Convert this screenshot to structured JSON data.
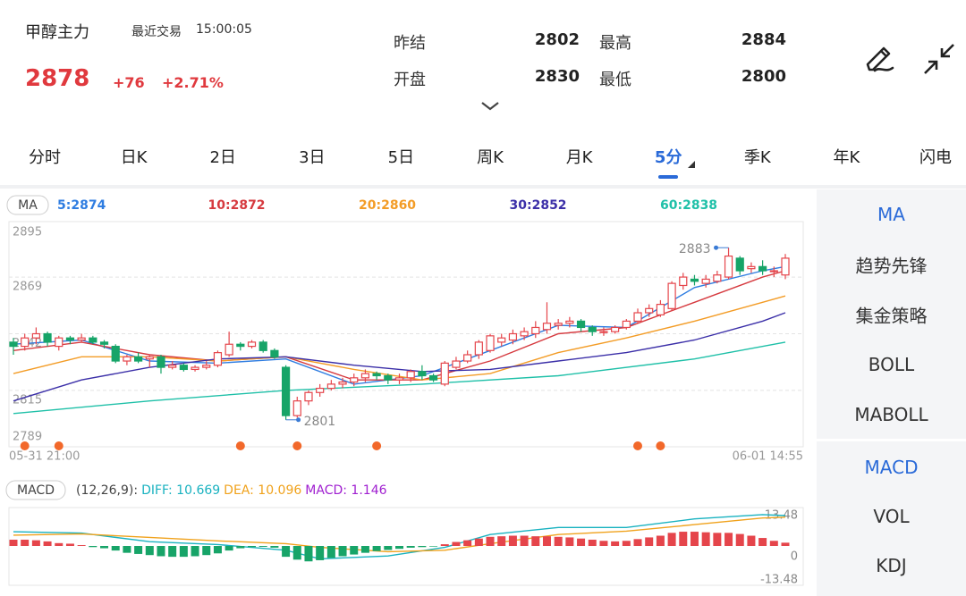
{
  "header": {
    "title": "甲醇主力",
    "last_trade_label": "最近交易",
    "time": "15:00:05",
    "price": "2878",
    "change": "+76",
    "change_pct": "+2.71%",
    "stats": [
      {
        "label": "昨结",
        "value": "2802"
      },
      {
        "label": "最高",
        "value": "2884"
      },
      {
        "label": "开盘",
        "value": "2830"
      },
      {
        "label": "最低",
        "value": "2800"
      }
    ]
  },
  "tabs": {
    "items": [
      "分时",
      "日K",
      "2日",
      "3日",
      "5日",
      "周K",
      "月K",
      "5分",
      "季K",
      "年K",
      "闪电"
    ],
    "active": 7
  },
  "side_panel": {
    "main": [
      "MA",
      "趋势先锋",
      "集金策略",
      "BOLL",
      "MABOLL"
    ],
    "main_active": 0,
    "sub": [
      "MACD",
      "VOL",
      "KDJ"
    ],
    "sub_active": 0
  },
  "chart_data": [
    {
      "type": "candlestick",
      "indicator": "MA",
      "categories": [
        "05-31 21:00",
        null,
        null,
        null,
        null,
        null,
        null,
        null,
        null,
        null,
        null,
        null,
        null,
        null,
        null,
        null,
        null,
        null,
        null,
        null,
        null,
        null,
        null,
        null,
        null,
        null,
        null,
        null,
        null,
        null,
        null,
        null,
        null,
        null,
        null,
        null,
        null,
        null,
        null,
        null,
        null,
        null,
        null,
        null,
        null,
        null,
        null,
        null,
        null,
        null,
        null,
        null,
        null,
        null,
        null,
        null,
        null,
        null,
        null,
        null,
        null,
        null,
        null,
        null,
        null,
        null,
        null,
        null,
        "06-01 14:55"
      ],
      "open": [
        2838,
        2836,
        2840,
        2842,
        2836,
        2840,
        2839,
        2840,
        2838,
        2836,
        2829,
        2831,
        2830,
        2831,
        2826,
        2827,
        2825,
        2826,
        2827,
        2832,
        2837,
        2836,
        2838,
        2834,
        2826,
        2803,
        2810,
        2814,
        2816,
        2818,
        2819,
        2821,
        2823,
        2822,
        2820,
        2821,
        2824,
        2822,
        2818,
        2826,
        2829,
        2832,
        2834,
        2838,
        2839,
        2841,
        2842,
        2844,
        2846,
        2847,
        2848,
        2845,
        2843,
        2843,
        2845,
        2848,
        2852,
        2851,
        2854,
        2865,
        2868,
        2866,
        2867,
        2869,
        2878,
        2873,
        2874,
        2872,
        2870
      ],
      "high": [
        2840,
        2842,
        2845,
        2843,
        2841,
        2841,
        2842,
        2841,
        2839,
        2837,
        2832,
        2833,
        2832,
        2832,
        2829,
        2828,
        2827,
        2829,
        2834,
        2843,
        2838,
        2839,
        2839,
        2835,
        2827,
        2812,
        2815,
        2818,
        2820,
        2821,
        2823,
        2825,
        2824,
        2823,
        2823,
        2825,
        2827,
        2823,
        2829,
        2831,
        2834,
        2839,
        2842,
        2842,
        2844,
        2845,
        2848,
        2857,
        2849,
        2850,
        2849,
        2846,
        2845,
        2846,
        2849,
        2854,
        2856,
        2858,
        2867,
        2871,
        2870,
        2870,
        2872,
        2883,
        2879,
        2876,
        2877,
        2874,
        2880
      ],
      "low": [
        2832,
        2834,
        2837,
        2836,
        2834,
        2837,
        2838,
        2837,
        2835,
        2828,
        2827,
        2828,
        2826,
        2823,
        2825,
        2824,
        2824,
        2825,
        2826,
        2831,
        2834,
        2835,
        2833,
        2830,
        2801,
        2802,
        2808,
        2812,
        2815,
        2816,
        2817,
        2819,
        2820,
        2818,
        2818,
        2819,
        2820,
        2819,
        2817,
        2825,
        2828,
        2830,
        2833,
        2836,
        2837,
        2839,
        2840,
        2842,
        2844,
        2845,
        2843,
        2841,
        2841,
        2842,
        2844,
        2847,
        2850,
        2850,
        2853,
        2863,
        2865,
        2864,
        2866,
        2868,
        2870,
        2871,
        2870,
        2869,
        2868
      ],
      "close": [
        2836,
        2840,
        2842,
        2838,
        2840,
        2839,
        2840,
        2838,
        2837,
        2829,
        2831,
        2829,
        2831,
        2826,
        2827,
        2825,
        2826,
        2827,
        2833,
        2837,
        2836,
        2838,
        2834,
        2831,
        2803,
        2810,
        2814,
        2816,
        2818,
        2819,
        2821,
        2823,
        2822,
        2820,
        2821,
        2824,
        2822,
        2820,
        2828,
        2829,
        2832,
        2838,
        2841,
        2840,
        2842,
        2843,
        2845,
        2847,
        2847,
        2848,
        2845,
        2843,
        2843,
        2845,
        2848,
        2852,
        2854,
        2856,
        2866,
        2869,
        2867,
        2868,
        2870,
        2879,
        2872,
        2874,
        2872,
        2872,
        2878
      ],
      "up_color": "#e5454b",
      "down_color": "#17a468",
      "series": [
        {
          "name": "5:2874",
          "color": "#2f7de1",
          "x": [
            0,
            6,
            12,
            18,
            24,
            30,
            36,
            42,
            48,
            54,
            60,
            66,
            68
          ],
          "values": [
            2837,
            2839,
            2829,
            2828,
            2830,
            2818,
            2822,
            2834,
            2846,
            2845,
            2864,
            2872,
            2874
          ]
        },
        {
          "name": "10:2872",
          "color": "#d63a3f",
          "x": [
            0,
            6,
            12,
            18,
            24,
            30,
            36,
            42,
            48,
            54,
            60,
            66,
            68
          ],
          "values": [
            2834,
            2838,
            2832,
            2829,
            2831,
            2820,
            2820,
            2829,
            2842,
            2845,
            2857,
            2869,
            2872
          ]
        },
        {
          "name": "20:2860",
          "color": "#f39c26",
          "x": [
            0,
            6,
            12,
            18,
            24,
            30,
            36,
            42,
            48,
            54,
            60,
            66,
            68
          ],
          "values": [
            2823,
            2831,
            2831,
            2829,
            2831,
            2825,
            2820,
            2823,
            2833,
            2840,
            2848,
            2857,
            2860
          ]
        },
        {
          "name": "30:2852",
          "color": "#3b2fa8",
          "x": [
            0,
            6,
            12,
            18,
            24,
            30,
            36,
            42,
            48,
            54,
            60,
            66,
            68
          ],
          "values": [
            2810,
            2820,
            2826,
            2830,
            2831,
            2827,
            2824,
            2825,
            2829,
            2833,
            2839,
            2848,
            2852
          ]
        },
        {
          "name": "60:2838",
          "color": "#1fc0a8",
          "x": [
            0,
            12,
            24,
            36,
            48,
            60,
            68
          ],
          "values": [
            2804,
            2810,
            2815,
            2818,
            2822,
            2830,
            2838
          ]
        }
      ],
      "ylim": [
        2789,
        2895
      ],
      "yticks": [
        2895,
        2869,
        2842,
        2815,
        2789
      ],
      "grid": true,
      "max_marker": {
        "index": 63,
        "value": 2883
      },
      "min_marker": {
        "index": 24,
        "value": 2801
      },
      "signals": {
        "color": "#f2682a",
        "x": [
          1,
          4,
          20,
          25,
          32,
          55,
          57
        ]
      }
    },
    {
      "type": "macd",
      "indicator": "MACD",
      "params": "(12,26,9):",
      "series": [
        {
          "name": "DIFF: 10.669",
          "color": "#19b2c0",
          "x": [
            0,
            6,
            12,
            18,
            24,
            27,
            33,
            38,
            42,
            48,
            54,
            60,
            66,
            68
          ],
          "values": [
            5.0,
            4.5,
            1.5,
            0.5,
            -1.5,
            -4.5,
            -3.5,
            -0.5,
            4.0,
            6.5,
            6.5,
            9.5,
            11.0,
            10.669
          ]
        },
        {
          "name": "DEA: 10.096",
          "color": "#f0a21c",
          "x": [
            0,
            6,
            12,
            18,
            24,
            27,
            33,
            38,
            42,
            48,
            54,
            60,
            66,
            68
          ],
          "values": [
            3.8,
            4.2,
            3.0,
            1.8,
            0.8,
            -0.5,
            -2.0,
            -1.5,
            0.8,
            4.0,
            5.2,
            7.5,
            9.8,
            10.096
          ]
        },
        {
          "name": "MACD: 1.146",
          "color": "#a020d0",
          "kind": "bar",
          "values": [
            2.2,
            2.2,
            2.0,
            1.6,
            1.0,
            0.8,
            0.3,
            -0.4,
            -0.8,
            -1.6,
            -2.4,
            -2.8,
            -3.2,
            -3.6,
            -3.8,
            -3.8,
            -3.6,
            -3.2,
            -2.6,
            -1.6,
            -0.8,
            -0.4,
            -0.3,
            -0.6,
            -3.8,
            -4.8,
            -5.4,
            -5.0,
            -4.2,
            -3.6,
            -3.0,
            -2.4,
            -1.8,
            -1.4,
            -1.0,
            -0.6,
            -0.4,
            -0.2,
            0.6,
            1.4,
            2.0,
            2.6,
            3.2,
            3.4,
            3.6,
            3.6,
            3.4,
            3.4,
            3.2,
            3.0,
            2.6,
            2.2,
            1.8,
            1.6,
            1.8,
            2.4,
            3.0,
            3.6,
            4.6,
            5.0,
            5.0,
            4.8,
            4.6,
            4.6,
            4.2,
            3.6,
            2.8,
            1.8,
            1.146
          ]
        }
      ],
      "up_color": "#e5454b",
      "down_color": "#17a468",
      "ylim": [
        -13.48,
        13.48
      ],
      "yticks": [
        13.48,
        0,
        -13.48
      ],
      "grid": false
    }
  ]
}
